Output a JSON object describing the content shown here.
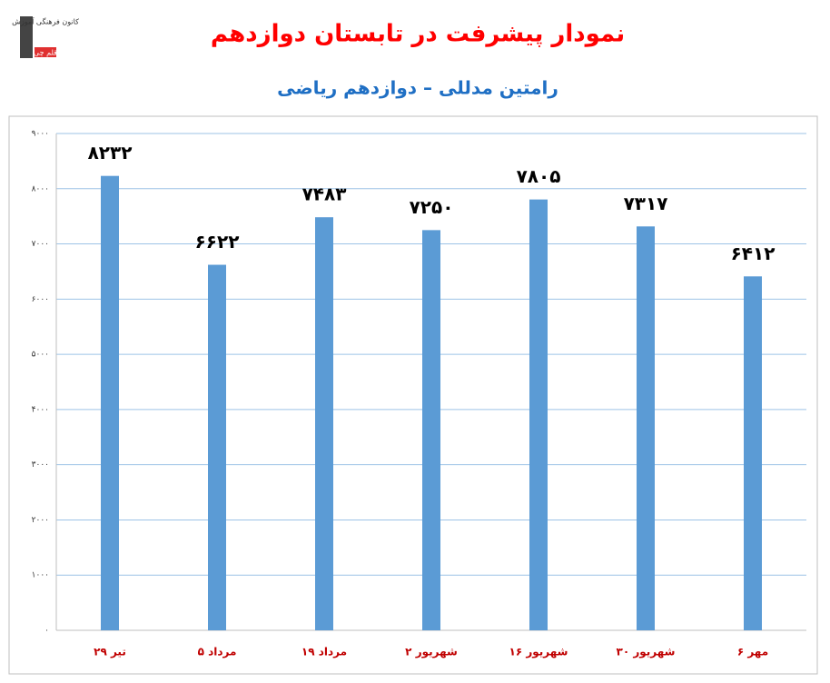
{
  "chart_data": {
    "type": "bar",
    "title": "نمودار پیشرفت در تابستان دوازدهم",
    "subtitle": "رامتین مدللی – دوازدهم ریاضی",
    "logo": "کانون فرهنگی آموزش",
    "logo_badge": "قلم چی",
    "categories": [
      "۲۹ تیر",
      "۵ مرداد",
      "۱۹ مرداد",
      "۲ شهریور",
      "۱۶ شهریور",
      "۳۰ شهریور",
      "۶ مهر"
    ],
    "values": [
      8232,
      6622,
      7483,
      7250,
      7805,
      7317,
      6412
    ],
    "value_labels": [
      "۸۲۳۲",
      "۶۶۲۲",
      "۷۴۸۳",
      "۷۲۵۰",
      "۷۸۰۵",
      "۷۳۱۷",
      "۶۴۱۲"
    ],
    "color": "#5b9bd5",
    "ylim": [
      0,
      9000
    ],
    "yticks": [
      {
        "value": 0,
        "label": "۰"
      },
      {
        "value": 1000,
        "label": "۱۰۰۰"
      },
      {
        "value": 2000,
        "label": "۲۰۰۰"
      },
      {
        "value": 3000,
        "label": "۳۰۰۰"
      },
      {
        "value": 4000,
        "label": "۴۰۰۰"
      },
      {
        "value": 5000,
        "label": "۵۰۰۰"
      },
      {
        "value": 6000,
        "label": "۶۰۰۰"
      },
      {
        "value": 7000,
        "label": "۷۰۰۰"
      },
      {
        "value": 8000,
        "label": "۸۰۰۰"
      },
      {
        "value": 9000,
        "label": "۹۰۰۰"
      }
    ],
    "grid": true
  }
}
